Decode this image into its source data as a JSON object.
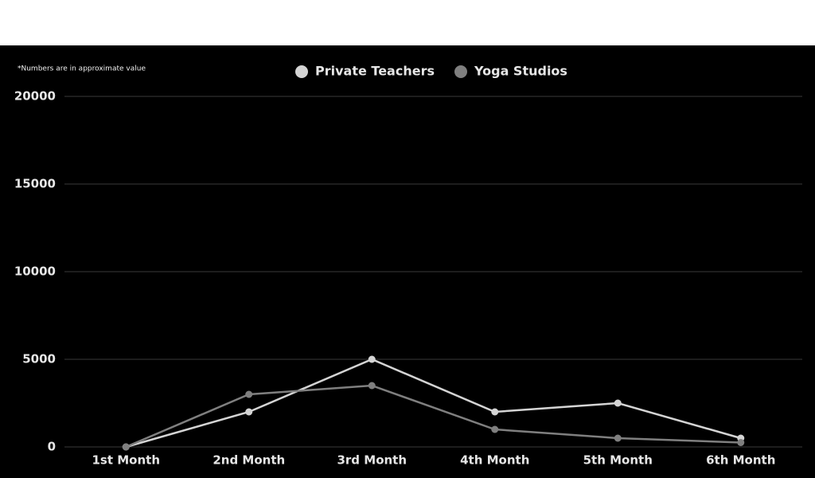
{
  "chart_data": {
    "type": "line",
    "annotation": "*Numbers are in approximate value",
    "categories": [
      "1st Month",
      "2nd Month",
      "3rd Month",
      "4th Month",
      "5th Month",
      "6th Month"
    ],
    "series": [
      {
        "name": "Private Teachers",
        "color": "#d4d4d4",
        "values": [
          0,
          2000,
          5000,
          2000,
          2500,
          500
        ]
      },
      {
        "name": "Yoga Studios",
        "color": "#7f7f7f",
        "values": [
          0,
          3000,
          3500,
          1000,
          500,
          250
        ]
      }
    ],
    "ylim": [
      0,
      20000
    ],
    "yticks": [
      0,
      5000,
      10000,
      15000,
      20000
    ],
    "grid": true,
    "legend": "top"
  }
}
